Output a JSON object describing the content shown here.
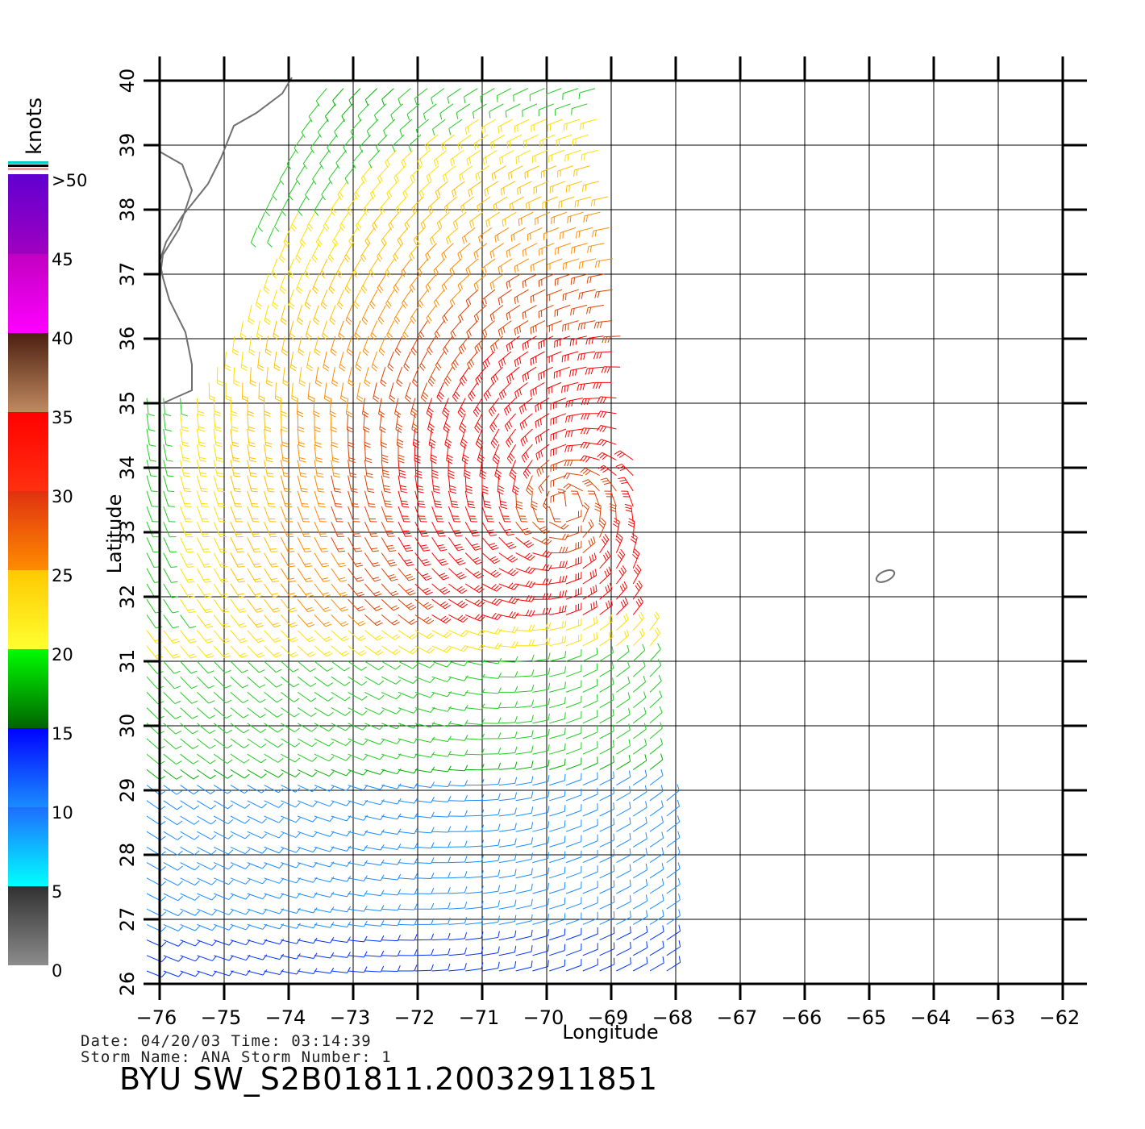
{
  "map": {
    "x_axis_label": "Longitude",
    "y_axis_label": "Latitude",
    "lon_ticks": [
      -76,
      -75,
      -74,
      -73,
      -72,
      -71,
      -70,
      -69,
      -68,
      -67,
      -66,
      -65,
      -64,
      -63,
      -62
    ],
    "lat_ticks": [
      26,
      27,
      28,
      29,
      30,
      31,
      32,
      33,
      34,
      35,
      36,
      37,
      38,
      39,
      40
    ],
    "lon_range": [
      -76,
      -62
    ],
    "lat_range": [
      26,
      40
    ],
    "grid": true
  },
  "colorbar": {
    "title": "knots",
    "labels": [
      ">50",
      "45",
      "40",
      "35",
      "30",
      "25",
      "20",
      "15",
      "10",
      "5",
      "0"
    ],
    "stops": [
      {
        "from": 0,
        "to": 5,
        "top": "#303030",
        "bottom": "#8c8c8c"
      },
      {
        "from": 5,
        "to": 10,
        "top": "#1e6cff",
        "bottom": "#00ffff"
      },
      {
        "from": 10,
        "to": 15,
        "top": "#0000ff",
        "bottom": "#1a8cff"
      },
      {
        "from": 15,
        "to": 20,
        "top": "#00ff00",
        "bottom": "#006400"
      },
      {
        "from": 20,
        "to": 25,
        "top": "#ffc800",
        "bottom": "#ffff30"
      },
      {
        "from": 25,
        "to": 30,
        "top": "#e03010",
        "bottom": "#ff8c00"
      },
      {
        "from": 30,
        "to": 35,
        "top": "#ff0000",
        "bottom": "#ff3010"
      },
      {
        "from": 35,
        "to": 40,
        "top": "#4a1e10",
        "bottom": "#c08a60"
      },
      {
        "from": 40,
        "to": 45,
        "top": "#c000c0",
        "bottom": "#ff00ff"
      },
      {
        "from": 45,
        "to": 50,
        "top": "#6000d0",
        "bottom": "#a000c0"
      }
    ]
  },
  "footer": {
    "date_line": "Date: 04/20/03   Time: 03:14:39",
    "storm_line": "Storm  Name: ANA   Storm  Number: 1",
    "title": "BYU  SW_S2B01811.20032911851"
  },
  "colors": {
    "coast": "#707070",
    "frame": "#000000",
    "speed_palette": [
      "#0033ff",
      "#1a8cff",
      "#00b000",
      "#22cc22",
      "#ffe000",
      "#ffc000",
      "#ff8c00",
      "#e04000",
      "#ff0000",
      "#8b1a1a",
      "#cc00cc"
    ]
  }
}
